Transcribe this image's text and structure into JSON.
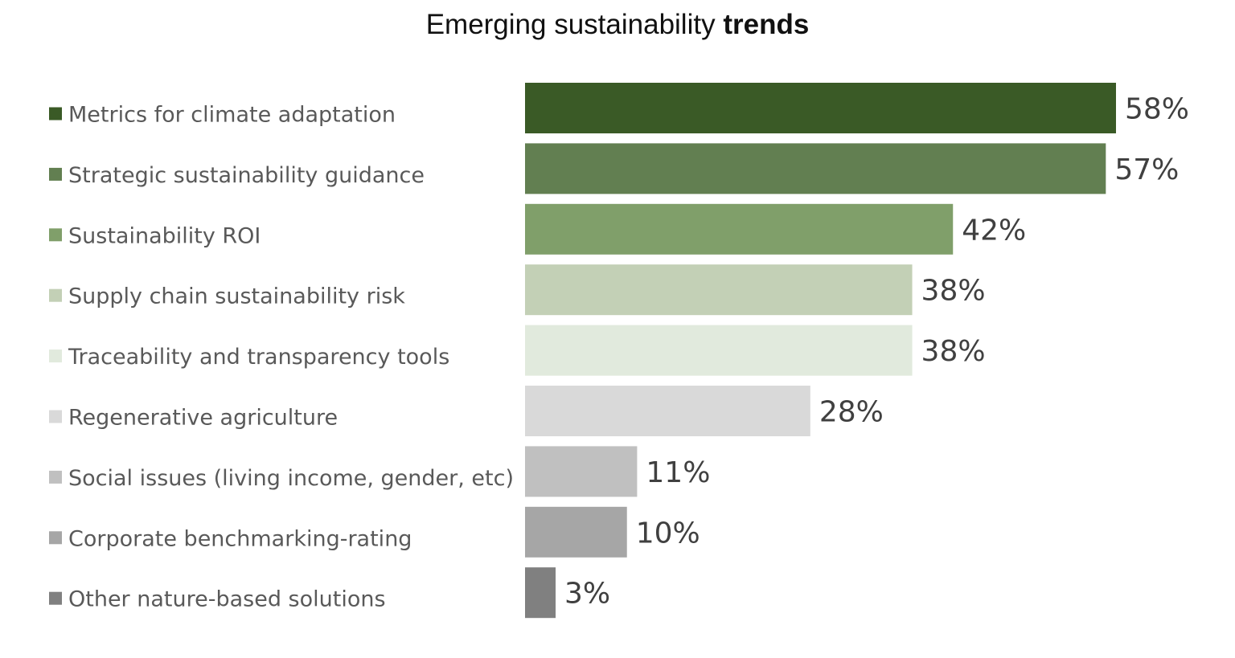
{
  "chart_data": {
    "type": "bar",
    "orientation": "horizontal",
    "title": "Emerging sustainability",
    "title_emphasis": "trends",
    "xlabel": "",
    "ylabel": "",
    "xlim": [
      0,
      58
    ],
    "grid": false,
    "legend_position": "left",
    "value_suffix": "%",
    "categories": [
      "Metrics for climate adaptation",
      "Strategic sustainability guidance",
      "Sustainability ROI",
      "Supply chain sustainability risk",
      "Traceability and transparency tools",
      "Regenerative agriculture",
      "Social issues (living income, gender, etc)",
      "Corporate benchmarking-rating",
      "Other nature-based solutions"
    ],
    "values": [
      58,
      57,
      42,
      38,
      38,
      28,
      11,
      10,
      3
    ],
    "colors": [
      "#3a5a26",
      "#627f51",
      "#809f6a",
      "#c3d0b6",
      "#e1eadd",
      "#d9d9d9",
      "#c0c0c0",
      "#a6a6a6",
      "#808080"
    ],
    "label_color": "#404040",
    "legend_text_color": "#595959"
  }
}
